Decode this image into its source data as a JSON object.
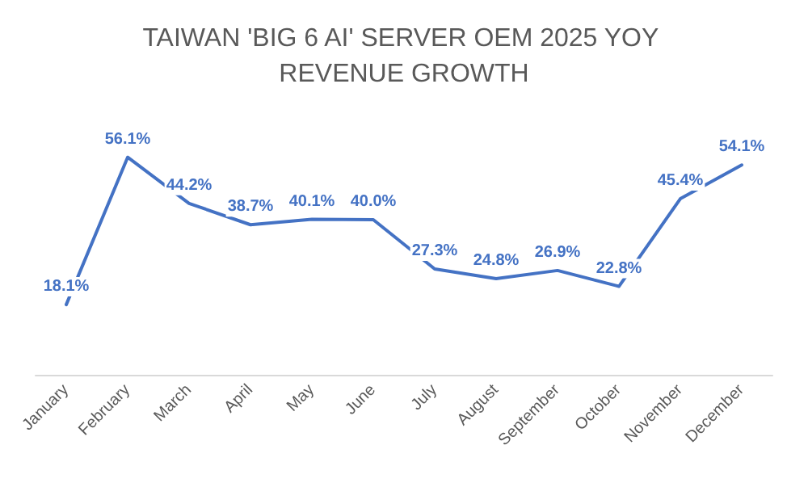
{
  "chart_data": {
    "type": "line",
    "title": "TAIWAN 'BIG 6 AI' SERVER OEM 2025 YOY REVENUE GROWTH",
    "categories": [
      "January",
      "February",
      "March",
      "April",
      "May",
      "June",
      "July",
      "August",
      "September",
      "October",
      "November",
      "December"
    ],
    "series": [
      {
        "color": "#4472c4",
        "values": [
          18.1,
          56.1,
          44.2,
          38.7,
          40.1,
          40.0,
          27.3,
          24.8,
          26.9,
          22.8,
          45.4,
          54.1
        ],
        "value_labels": [
          "18.1%",
          "56.1%",
          "44.2%",
          "38.7%",
          "40.1%",
          "40.0%",
          "27.3%",
          "24.8%",
          "26.9%",
          "22.8%",
          "45.4%",
          "54.1%"
        ]
      }
    ],
    "marker": "none",
    "grid": false,
    "tick_labels": "x"
  }
}
